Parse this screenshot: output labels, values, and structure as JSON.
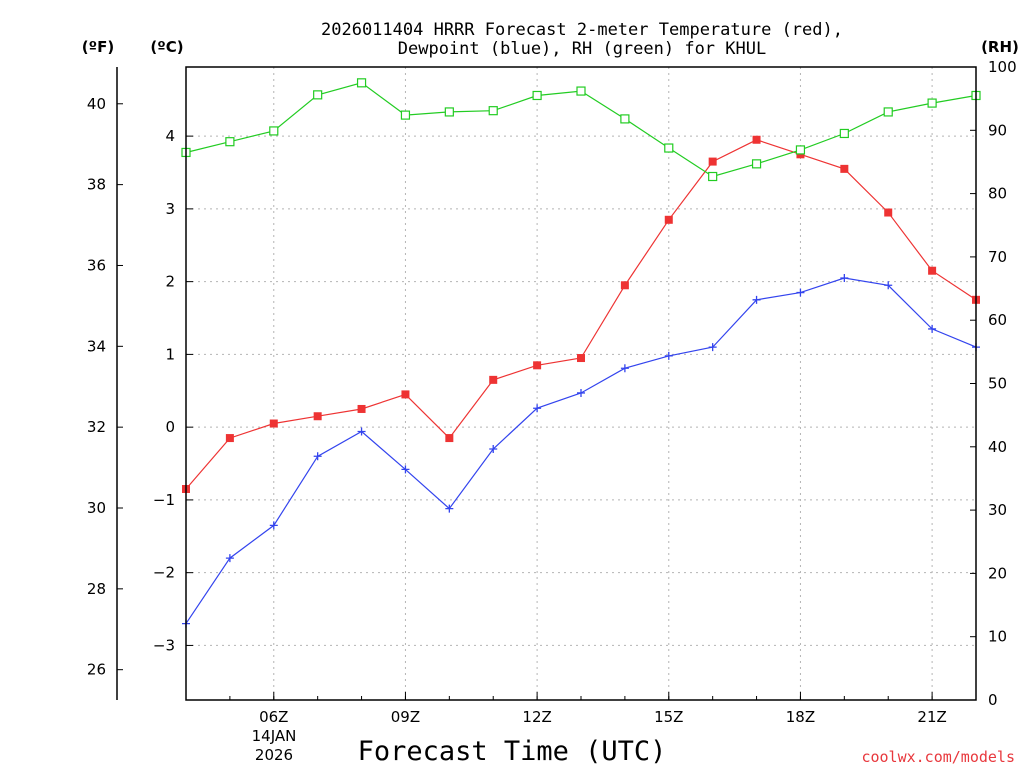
{
  "chart_data": {
    "type": "line",
    "title_line1": "2026011404 HRRR Forecast 2-meter Temperature (red),",
    "title_line2": "Dewpoint (blue), RH (green) for KHUL",
    "xlabel": "Forecast Time (UTC)",
    "date_label_day": "14JAN",
    "date_label_year": "2026",
    "credit": "coolwx.com/models",
    "unit_labels": {
      "fahrenheit": "(ºF)",
      "celsius": "(ºC)",
      "rh": "(RH)"
    },
    "x": [
      4,
      5,
      6,
      7,
      8,
      9,
      10,
      11,
      12,
      13,
      14,
      15,
      16,
      17,
      18,
      19,
      20,
      21,
      22
    ],
    "x_range": [
      4,
      22
    ],
    "x_ticks": [
      {
        "value": 6,
        "label": "06Z"
      },
      {
        "value": 9,
        "label": "09Z"
      },
      {
        "value": 12,
        "label": "12Z"
      },
      {
        "value": 15,
        "label": "15Z"
      },
      {
        "value": 18,
        "label": "18Z"
      },
      {
        "value": 21,
        "label": "21Z"
      }
    ],
    "celsius_axis": {
      "range": [
        -3.75,
        4.95
      ],
      "ticks": [
        -3,
        -2,
        -1,
        0,
        1,
        2,
        3,
        4
      ],
      "tick_labels": [
        "−3",
        "−2",
        "−1",
        "0",
        "1",
        "2",
        "3",
        "4"
      ]
    },
    "fahrenheit_axis": {
      "ticks": [
        26,
        28,
        30,
        32,
        34,
        36,
        38,
        40
      ],
      "tick_labels": [
        "26",
        "28",
        "30",
        "32",
        "34",
        "36",
        "38",
        "40"
      ]
    },
    "rh_axis": {
      "range": [
        0,
        100
      ],
      "ticks": [
        0,
        10,
        20,
        30,
        40,
        50,
        60,
        70,
        80,
        90,
        100
      ],
      "tick_labels": [
        "0",
        "10",
        "20",
        "30",
        "40",
        "50",
        "60",
        "70",
        "80",
        "90",
        "100"
      ]
    },
    "grid": true,
    "series": [
      {
        "name": "Temperature",
        "axis": "celsius",
        "color": "#ee3333",
        "marker": "filled-square",
        "values": [
          -0.85,
          -0.15,
          0.05,
          0.15,
          0.25,
          0.45,
          -0.15,
          0.65,
          0.85,
          0.95,
          1.95,
          2.85,
          3.65,
          3.95,
          3.75,
          3.55,
          2.95,
          2.15,
          1.75
        ]
      },
      {
        "name": "Dewpoint",
        "axis": "celsius",
        "color": "#3344ee",
        "marker": "plus",
        "values": [
          -2.7,
          -1.8,
          -1.35,
          -0.4,
          -0.06,
          -0.58,
          -1.12,
          -0.3,
          0.26,
          0.47,
          0.81,
          0.98,
          1.1,
          1.75,
          1.85,
          2.05,
          1.95,
          1.35,
          1.1
        ]
      },
      {
        "name": "RH",
        "axis": "rh",
        "color": "#22cc22",
        "marker": "open-square",
        "values": [
          86.5,
          88.2,
          89.9,
          95.6,
          97.5,
          92.4,
          92.9,
          93.1,
          95.5,
          96.2,
          91.8,
          87.2,
          82.7,
          84.7,
          86.9,
          89.5,
          92.9,
          94.3,
          95.5
        ]
      }
    ]
  }
}
